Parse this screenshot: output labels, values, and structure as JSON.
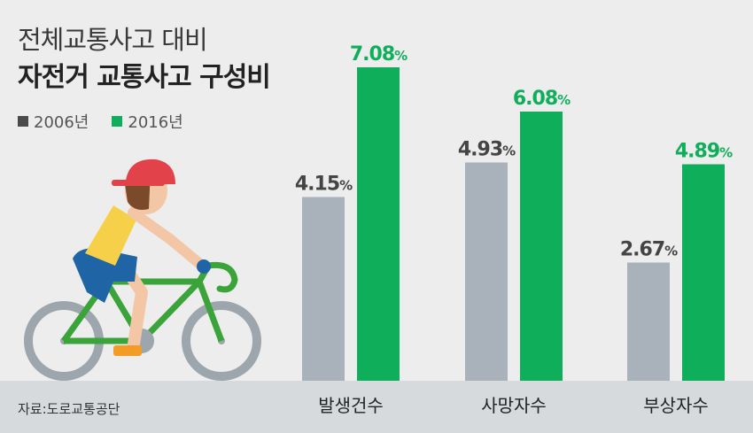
{
  "title_line1": "전체교통사고 대비",
  "title_line2": "자전거 교통사고 구성비",
  "source": "자료:도로교통공단",
  "colors": {
    "y2006": "#a9b1ba",
    "y2016": "#0fae5b",
    "legend2006": "#4a4a4a",
    "legend2016": "#0fae5b",
    "label2006": "#444444",
    "label2016": "#0fae5b"
  },
  "chart_data": {
    "type": "bar",
    "categories": [
      "발생건수",
      "사망자수",
      "부상자수"
    ],
    "series": [
      {
        "name": "2006년",
        "values": [
          4.15,
          4.93,
          2.67
        ]
      },
      {
        "name": "2016년",
        "values": [
          7.08,
          6.08,
          4.89
        ]
      }
    ],
    "unit": "%",
    "ylim": [
      0,
      7.6
    ],
    "grid": false,
    "legend_position": "top-left"
  }
}
